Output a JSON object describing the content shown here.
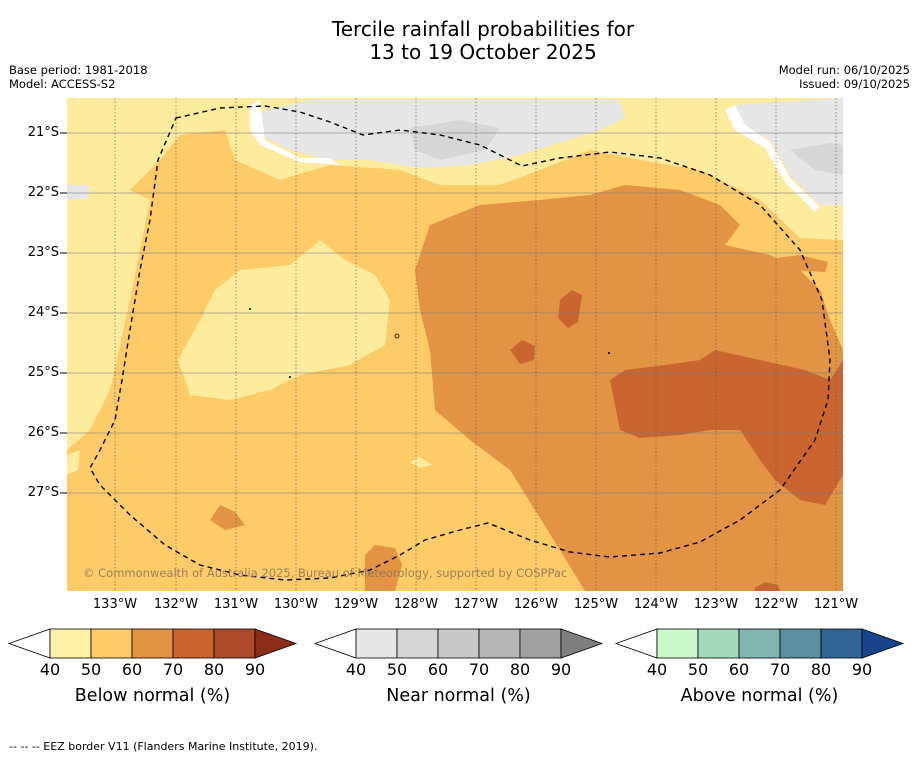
{
  "title": {
    "line1": "Tercile rainfall probabilities for",
    "line2": "13 to 19 October 2025"
  },
  "meta_left": {
    "base_period": "Base period: 1981-2018",
    "model": "Model: ACCESS-S2"
  },
  "meta_right": {
    "model_run": "Model run: 06/10/2025",
    "issued": "Issued: 09/10/2025"
  },
  "map": {
    "lat_labels": [
      "21°S",
      "22°S",
      "23°S",
      "24°S",
      "25°S",
      "26°S",
      "27°S"
    ],
    "lon_labels": [
      "133°W",
      "132°W",
      "131°W",
      "130°W",
      "129°W",
      "128°W",
      "127°W",
      "126°W",
      "125°W",
      "124°W",
      "123°W",
      "122°W",
      "121°W"
    ],
    "copyright": "© Commonwealth of Australia 2025, Bureau of Meteorology, supported by COSPPac",
    "colors": {
      "below_40": "#fdeb9e",
      "below_50": "#fdcb68",
      "below_60": "#e29344",
      "below_70": "#cb6530",
      "near_40": "#e6e6e6",
      "near_50": "#d6d6d6"
    }
  },
  "colorbars": [
    {
      "title": "Below normal (%)",
      "ticks": [
        "40",
        "50",
        "60",
        "70",
        "80",
        "90"
      ],
      "colors": [
        "#fff2a8",
        "#fdcb68",
        "#e29344",
        "#cb6530",
        "#ac4a29"
      ],
      "over_color": "#8b2d1a"
    },
    {
      "title": "Near normal (%)",
      "ticks": [
        "40",
        "50",
        "60",
        "70",
        "80",
        "90"
      ],
      "colors": [
        "#e6e6e6",
        "#d6d6d6",
        "#c8c8c8",
        "#b6b6b6",
        "#a0a0a0"
      ],
      "over_color": "#7f7f7f"
    },
    {
      "title": "Above normal (%)",
      "ticks": [
        "40",
        "50",
        "60",
        "70",
        "80",
        "90"
      ],
      "colors": [
        "#caf8cb",
        "#a4d9bd",
        "#82b5b0",
        "#5a8fa0",
        "#326496"
      ],
      "over_color": "#17448a"
    }
  ],
  "footnote": "-- -- -- EEZ border V11 (Flanders Marine Institute, 2019)."
}
